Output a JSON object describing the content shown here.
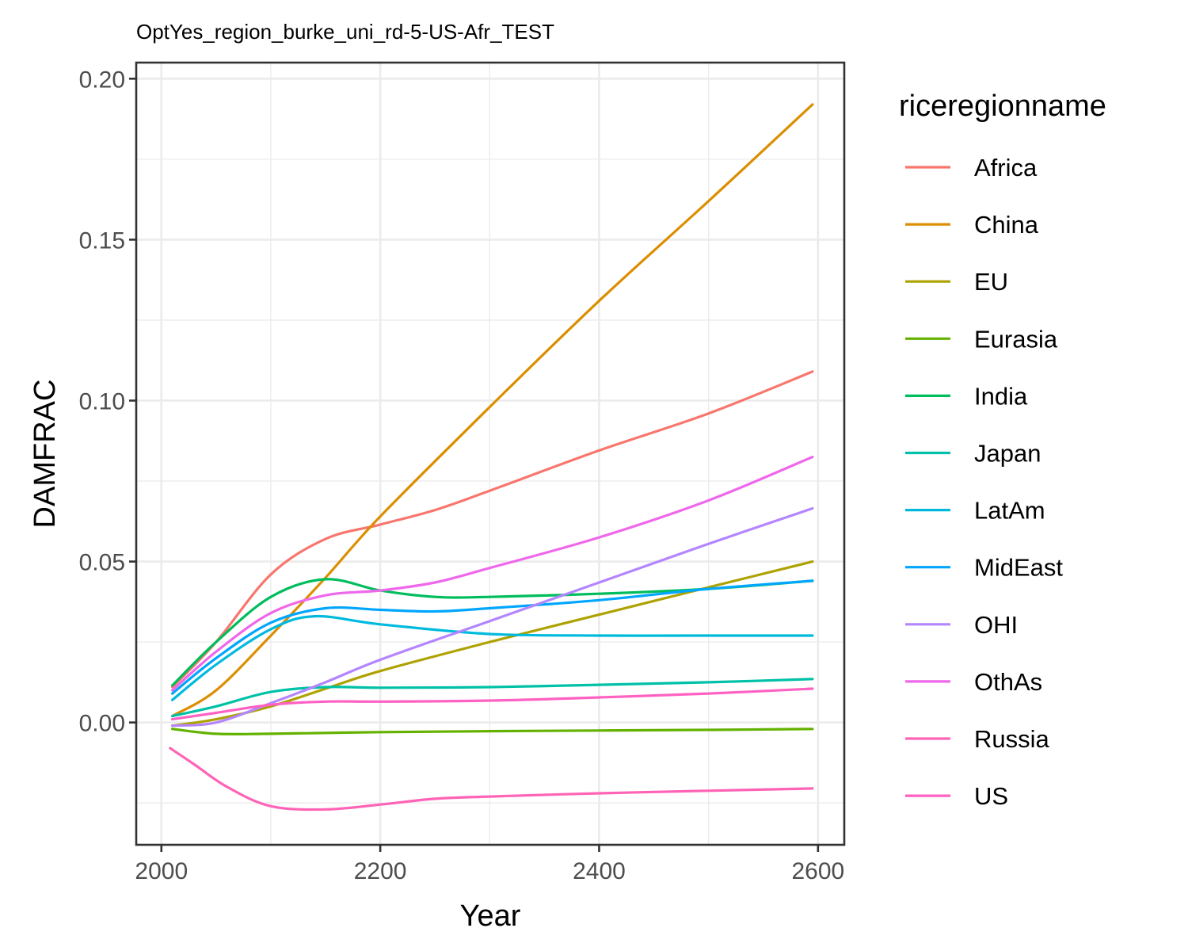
{
  "chart_data": {
    "type": "line",
    "title": "OptYes_region_burke_uni_rd-5-US-Afr_TEST",
    "xlabel": "Year",
    "ylabel": "DAMFRAC",
    "xlim": [
      1977,
      2624
    ],
    "ylim": [
      -0.038,
      0.205
    ],
    "x_ticks": [
      2000,
      2200,
      2400,
      2600
    ],
    "x_tick_labels": [
      "2000",
      "2200",
      "2400",
      "2600"
    ],
    "y_ticks": [
      0.0,
      0.05,
      0.1,
      0.15,
      0.2
    ],
    "y_tick_labels": [
      "0.00",
      "0.05",
      "0.10",
      "0.15",
      "0.20"
    ],
    "grid": true,
    "legend_title": "riceregionname",
    "legend_position": "right",
    "series": [
      {
        "name": "Africa",
        "color": "#F8766D",
        "x": [
          2010,
          2050,
          2100,
          2150,
          2200,
          2250,
          2300,
          2400,
          2500,
          2595
        ],
        "y": [
          0.011,
          0.025,
          0.046,
          0.057,
          0.0615,
          0.066,
          0.072,
          0.0845,
          0.096,
          0.109
        ]
      },
      {
        "name": "China",
        "color": "#DB8E00",
        "x": [
          2010,
          2050,
          2100,
          2150,
          2200,
          2300,
          2400,
          2500,
          2595
        ],
        "y": [
          0.002,
          0.01,
          0.027,
          0.045,
          0.064,
          0.098,
          0.131,
          0.162,
          0.192
        ]
      },
      {
        "name": "EU",
        "color": "#AEA200",
        "x": [
          2010,
          2050,
          2100,
          2150,
          2200,
          2300,
          2400,
          2500,
          2595
        ],
        "y": [
          -0.001,
          0.001,
          0.005,
          0.0105,
          0.016,
          0.025,
          0.0335,
          0.042,
          0.05
        ]
      },
      {
        "name": "Eurasia",
        "color": "#64B200",
        "x": [
          2010,
          2050,
          2100,
          2200,
          2300,
          2400,
          2500,
          2595
        ],
        "y": [
          -0.002,
          -0.0035,
          -0.0035,
          -0.003,
          -0.0027,
          -0.0025,
          -0.0023,
          -0.002
        ]
      },
      {
        "name": "India",
        "color": "#00BD5C",
        "x": [
          2010,
          2050,
          2100,
          2150,
          2200,
          2250,
          2300,
          2400,
          2500,
          2595
        ],
        "y": [
          0.0115,
          0.025,
          0.039,
          0.0445,
          0.041,
          0.039,
          0.039,
          0.04,
          0.0415,
          0.044
        ]
      },
      {
        "name": "Japan",
        "color": "#00C1A7",
        "x": [
          2010,
          2050,
          2100,
          2150,
          2200,
          2300,
          2400,
          2500,
          2595
        ],
        "y": [
          0.002,
          0.005,
          0.0095,
          0.011,
          0.0108,
          0.011,
          0.0117,
          0.0125,
          0.0135
        ]
      },
      {
        "name": "LatAm",
        "color": "#00BADE",
        "x": [
          2010,
          2050,
          2100,
          2140,
          2200,
          2300,
          2400,
          2500,
          2595
        ],
        "y": [
          0.007,
          0.018,
          0.029,
          0.033,
          0.0305,
          0.0275,
          0.027,
          0.027,
          0.027
        ]
      },
      {
        "name": "MidEast",
        "color": "#00A6FF",
        "x": [
          2010,
          2050,
          2100,
          2150,
          2200,
          2250,
          2300,
          2400,
          2500,
          2595
        ],
        "y": [
          0.009,
          0.02,
          0.031,
          0.0355,
          0.035,
          0.0345,
          0.0355,
          0.038,
          0.0415,
          0.044
        ]
      },
      {
        "name": "OHI",
        "color": "#B385FF",
        "label_color_unused": "",
        "x": [
          2010,
          2050,
          2100,
          2150,
          2200,
          2300,
          2400,
          2500,
          2595
        ],
        "y": [
          -0.001,
          0.0,
          0.006,
          0.0125,
          0.0195,
          0.0315,
          0.0435,
          0.0555,
          0.0665
        ]
      },
      {
        "name": "OthAs",
        "color": "#EF67EB",
        "x": [
          2010,
          2050,
          2100,
          2150,
          2200,
          2250,
          2300,
          2400,
          2500,
          2595
        ],
        "y": [
          0.01,
          0.022,
          0.034,
          0.0395,
          0.041,
          0.0435,
          0.048,
          0.0575,
          0.069,
          0.0825
        ]
      },
      {
        "name": "Russia",
        "color": "#FF63B6",
        "x": [
          2008,
          2030,
          2060,
          2100,
          2150,
          2200,
          2250,
          2300,
          2400,
          2500,
          2595
        ],
        "y": [
          -0.008,
          -0.013,
          -0.02,
          -0.026,
          -0.027,
          -0.0255,
          -0.0237,
          -0.023,
          -0.022,
          -0.0212,
          -0.0205
        ]
      },
      {
        "name": "US",
        "color": "#FF61C3",
        "x": [
          2010,
          2050,
          2100,
          2150,
          2200,
          2300,
          2400,
          2500,
          2595
        ],
        "y": [
          0.001,
          0.003,
          0.0055,
          0.0065,
          0.0065,
          0.0068,
          0.0078,
          0.009,
          0.0105
        ]
      }
    ]
  }
}
